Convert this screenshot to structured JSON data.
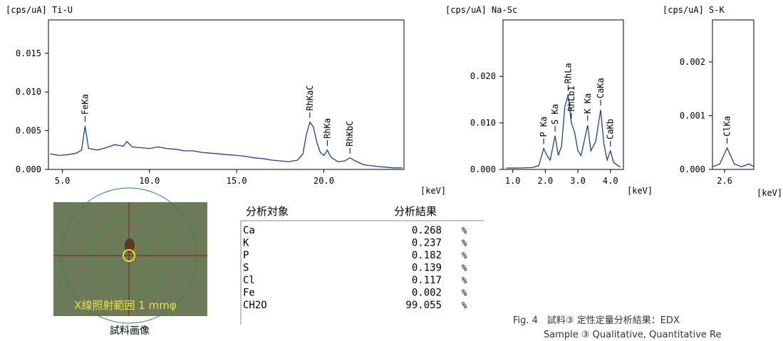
{
  "chart_data": [
    {
      "type": "line",
      "title": "[cps/uA] Ti-U",
      "xlabel": "[keV]",
      "color": "#1f3f9f",
      "x": [
        4.3,
        4.8,
        5.3,
        5.8,
        6.1,
        6.3,
        6.5,
        7.0,
        7.5,
        8.0,
        8.5,
        8.7,
        9.0,
        9.5,
        10.0,
        10.5,
        11.0,
        11.5,
        12.0,
        12.5,
        13.0,
        13.5,
        14.0,
        14.5,
        15.0,
        15.5,
        16.0,
        16.5,
        17.0,
        17.5,
        18.0,
        18.5,
        18.8,
        19.0,
        19.2,
        19.4,
        19.6,
        19.8,
        20.0,
        20.2,
        20.4,
        20.8,
        21.2,
        21.5,
        21.8,
        22.3,
        23.0,
        23.5,
        24.0,
        24.5
      ],
      "values": [
        0.002,
        0.0018,
        0.0019,
        0.0021,
        0.0025,
        0.0056,
        0.0027,
        0.0025,
        0.0028,
        0.0032,
        0.003,
        0.0036,
        0.0029,
        0.0028,
        0.0027,
        0.0029,
        0.0027,
        0.0026,
        0.0024,
        0.0024,
        0.0022,
        0.0021,
        0.002,
        0.0019,
        0.0018,
        0.0017,
        0.0015,
        0.0014,
        0.0012,
        0.0011,
        0.001,
        0.0012,
        0.002,
        0.0045,
        0.0061,
        0.0055,
        0.0035,
        0.0022,
        0.0018,
        0.0025,
        0.0016,
        0.001,
        0.0011,
        0.0015,
        0.0011,
        0.0006,
        0.0004,
        0.0003,
        0.0002,
        0.0002
      ],
      "xlim": [
        4.2,
        24.6
      ],
      "ylim": [
        0,
        0.0193
      ],
      "xticks": [
        {
          "value": 5,
          "label": "5.0"
        },
        {
          "value": 10,
          "label": "10.0"
        },
        {
          "value": 15,
          "label": "15.0"
        },
        {
          "value": 20,
          "label": "20.0"
        }
      ],
      "yticks": [
        {
          "value": 0,
          "label": "0.000"
        },
        {
          "value": 0.005,
          "label": "0.005"
        },
        {
          "value": 0.01,
          "label": "0.010"
        },
        {
          "value": 0.015,
          "label": "0.015"
        }
      ],
      "annotations": [
        {
          "text": "FeKa",
          "x": 6.3,
          "y": 0.0056
        },
        {
          "text": "RhKaC",
          "x": 19.2,
          "y": 0.0061
        },
        {
          "text": "RhKa",
          "x": 20.2,
          "y": 0.0025
        },
        {
          "text": "RhKbC",
          "x": 21.5,
          "y": 0.0015
        }
      ]
    },
    {
      "type": "line",
      "title": "[cps/uA] Na-Sc",
      "xlabel": "[keV]",
      "color": "#1f3f9f",
      "x": [
        0.8,
        1.2,
        1.6,
        1.8,
        1.95,
        2.05,
        2.15,
        2.3,
        2.4,
        2.5,
        2.6,
        2.7,
        2.8,
        2.9,
        3.0,
        3.1,
        3.3,
        3.4,
        3.55,
        3.7,
        3.8,
        3.9,
        4.0,
        4.1,
        4.3
      ],
      "values": [
        0.0003,
        0.0003,
        0.0004,
        0.0008,
        0.0045,
        0.003,
        0.002,
        0.0072,
        0.003,
        0.005,
        0.0135,
        0.016,
        0.01,
        0.008,
        0.004,
        0.003,
        0.0095,
        0.004,
        0.006,
        0.0128,
        0.0055,
        0.002,
        0.004,
        0.0015,
        0.0005
      ],
      "xlim": [
        0.7,
        4.4
      ],
      "ylim": [
        0,
        0.0321
      ],
      "xticks": [
        {
          "value": 1,
          "label": "1.0"
        },
        {
          "value": 2,
          "label": "2.0"
        },
        {
          "value": 3,
          "label": "3.0"
        },
        {
          "value": 4,
          "label": "4.0"
        }
      ],
      "yticks": [
        {
          "value": 0,
          "label": "0.000"
        },
        {
          "value": 0.01,
          "label": "0.010"
        },
        {
          "value": 0.02,
          "label": "0.020"
        }
      ],
      "annotations": [
        {
          "text": "P Ka",
          "x": 1.95,
          "y": 0.0045
        },
        {
          "text": "S Ka",
          "x": 2.3,
          "y": 0.0072
        },
        {
          "text": "RhLa",
          "x": 2.7,
          "y": 0.016
        },
        {
          "text": "RhLb1",
          "x": 2.8,
          "y": 0.01
        },
        {
          "text": "K Ka",
          "x": 3.3,
          "y": 0.0095
        },
        {
          "text": "CaKa",
          "x": 3.7,
          "y": 0.0128
        },
        {
          "text": "CaKb",
          "x": 4.0,
          "y": 0.004
        }
      ]
    },
    {
      "type": "line",
      "title": "[cps/uA] S-K",
      "xlabel": "[keV]",
      "color": "#1f3f9f",
      "x": [
        2.55,
        2.58,
        2.6,
        2.61,
        2.62,
        2.64,
        2.67,
        2.7,
        2.72
      ],
      "values": [
        5e-05,
        0.0001,
        0.0003,
        0.0004,
        0.0003,
        0.0001,
        5e-05,
        0.0001,
        5e-05
      ],
      "xlim": [
        2.55,
        2.72
      ],
      "ylim": [
        0,
        0.00278
      ],
      "xticks": [
        2.6
      ],
      "yticks": [
        {
          "value": 0,
          "label": "0.000"
        },
        {
          "value": 0.001,
          "label": "0.001"
        },
        {
          "value": 0.002,
          "label": "0.002"
        }
      ],
      "annotations": [
        {
          "text": "ClKa",
          "x": 2.61,
          "y": 0.0004
        }
      ]
    }
  ],
  "table": {
    "header": [
      "分析対象",
      "分析結果"
    ],
    "rows": [
      [
        "Ca",
        "0.268",
        "%"
      ],
      [
        "K",
        "0.237",
        "%"
      ],
      [
        "P",
        "0.182",
        "%"
      ],
      [
        "S",
        "0.139",
        "%"
      ],
      [
        "Cl",
        "0.117",
        "%"
      ],
      [
        "Fe",
        "0.002",
        "%"
      ],
      [
        "CH2O",
        "99.055",
        "%"
      ]
    ]
  },
  "photo": {
    "label": "X線照射範囲 1 mmφ",
    "caption": "試料画像"
  },
  "caption": {
    "line1": "Fig. 4　試料③ 定性定量分析結果：EDX",
    "line2": "Sample ③ Qualitative, Quantitative Re"
  }
}
